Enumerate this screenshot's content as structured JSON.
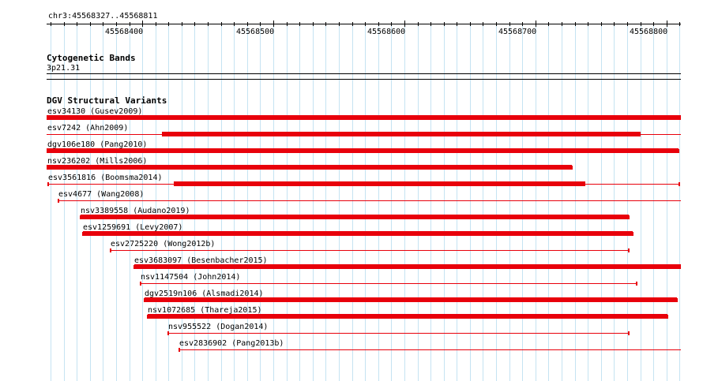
{
  "ruler": {
    "location": "chr3:45568327..45568811",
    "start": 45568327,
    "end": 45568811,
    "major_labels": [
      "45568400",
      "45568500",
      "45568600",
      "45568700",
      "45568800"
    ]
  },
  "cytoband": {
    "title": "Cytogenetic Bands",
    "band": "3p21.31"
  },
  "dgv": {
    "title": "DGV Structural Variants",
    "color": "#e8000b",
    "variants": [
      {
        "label": "esv34130 (Gusev2009)",
        "start": 45568327,
        "end": 45568811,
        "thick_start": 45568327,
        "thick_end": 45568811
      },
      {
        "label": "esv7242 (Ahn2009)",
        "start": 45568327,
        "end": 45568811,
        "thick_start": 45568415,
        "thick_end": 45568780
      },
      {
        "label": "dgv106e180 (Pang2010)",
        "start": 45568327,
        "end": 45568809,
        "thick_start": 45568327,
        "thick_end": 45568809
      },
      {
        "label": "nsv236202 (Mills2006)",
        "start": 45568327,
        "end": 45568728,
        "thick_start": 45568327,
        "thick_end": 45568728
      },
      {
        "label": "esv3561816 (Boomsma2014)",
        "start": 45568328,
        "end": 45568810,
        "thick_start": 45568424,
        "thick_end": 45568738
      },
      {
        "label": "esv4677 (Wang2008)",
        "start": 45568336,
        "end": 45568811,
        "thick_start": null,
        "thick_end": null
      },
      {
        "label": "nsv3389558 (Audano2019)",
        "start": 45568353,
        "end": 45568771,
        "thick_start": 45568353,
        "thick_end": 45568771
      },
      {
        "label": "esv1259691 (Levy2007)",
        "start": 45568355,
        "end": 45568774,
        "thick_start": 45568355,
        "thick_end": 45568774
      },
      {
        "label": "esv2725220 (Wong2012b)",
        "start": 45568376,
        "end": 45568771,
        "thick_start": null,
        "thick_end": null
      },
      {
        "label": "esv3683097 (Besenbacher2015)",
        "start": 45568394,
        "end": 45568811,
        "thick_start": 45568394,
        "thick_end": 45568811
      },
      {
        "label": "nsv1147504 (John2014)",
        "start": 45568399,
        "end": 45568777,
        "thick_start": null,
        "thick_end": null
      },
      {
        "label": "dgv2519n106 (Alsmadi2014)",
        "start": 45568402,
        "end": 45568808,
        "thick_start": 45568402,
        "thick_end": 45568808
      },
      {
        "label": "nsv1072685 (Thareja2015)",
        "start": 45568404,
        "end": 45568801,
        "thick_start": 45568404,
        "thick_end": 45568801
      },
      {
        "label": "nsv955522 (Dogan2014)",
        "start": 45568420,
        "end": 45568771,
        "thick_start": null,
        "thick_end": null
      },
      {
        "label": "esv2836902 (Pang2013b)",
        "start": 45568428,
        "end": 45568811,
        "thick_start": null,
        "thick_end": null
      }
    ]
  }
}
